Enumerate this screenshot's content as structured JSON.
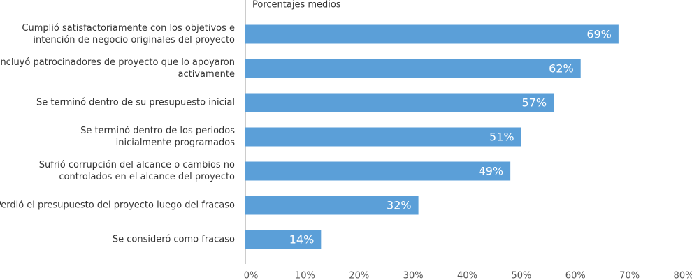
{
  "chart_data": {
    "type": "hbar",
    "title": "Porcentajes medios",
    "categories": [
      [
        "Cumplió satisfactoriamente con los objetivos e",
        "intención de negocio originales del proyecto"
      ],
      [
        "Incluyó patrocinadores de proyecto que lo apoyaron",
        "activamente"
      ],
      [
        "Se terminó dentro de su presupuesto inicial"
      ],
      [
        "Se terminó dentro de los periodos",
        "inicialmente programados"
      ],
      [
        "Sufrió corrupción del alcance o cambios no",
        "controlados en el alcance del proyecto"
      ],
      [
        "Perdió el presupuesto del proyecto luego del fracaso"
      ],
      [
        "Se consideró como fracaso"
      ]
    ],
    "values": [
      69,
      62,
      57,
      51,
      49,
      32,
      14
    ],
    "value_labels": [
      "69%",
      "62%",
      "57%",
      "51%",
      "49%",
      "32%",
      "14%"
    ],
    "color": "#5b9fd8",
    "xlim": [
      0,
      80
    ],
    "xticks": [
      {
        "value": 0,
        "label": "0%"
      },
      {
        "value": 10,
        "label": "10%"
      },
      {
        "value": 20,
        "label": "20%"
      },
      {
        "value": 30,
        "label": "30%"
      },
      {
        "value": 40,
        "label": "40%"
      },
      {
        "value": 50,
        "label": "50%"
      },
      {
        "value": 60,
        "label": "60%"
      },
      {
        "value": 70,
        "label": "70%"
      },
      {
        "value": 80,
        "label": "80%"
      }
    ],
    "grid": false
  }
}
